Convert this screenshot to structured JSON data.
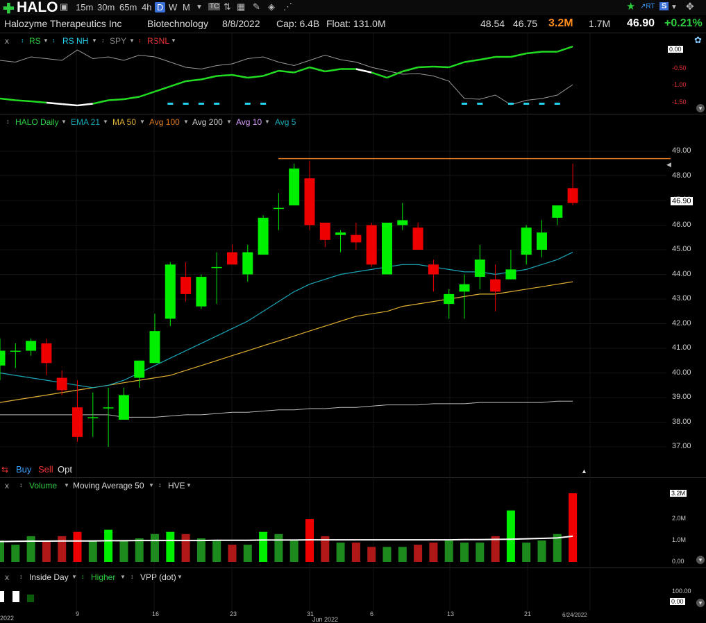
{
  "toolbar": {
    "symbol": "HALO",
    "timeframes": [
      "15m",
      "30m",
      "65m",
      "4h",
      "D",
      "W",
      "M"
    ],
    "active_timeframe": "D",
    "right_icons": [
      "star-icon",
      "rt-icon",
      "s-icon",
      "settings-icon"
    ]
  },
  "info": {
    "company": "Halozyme Therapeutics Inc",
    "industry": "Biotechnology",
    "date": "8/8/2022",
    "cap": "Cap: 6.4B",
    "float": "Float: 131.0M",
    "high": "48.54",
    "low": "46.75",
    "volume": "3.2M",
    "avg_volume": "1.7M",
    "price": "46.90",
    "change": "+0.21%"
  },
  "rs_pane": {
    "close_label": "x",
    "items": [
      "RS",
      "RS NH",
      "SPY",
      "RSNL"
    ],
    "axis": [
      "0.00",
      "-0.50",
      "-1.00",
      "-1.50"
    ]
  },
  "price_pane": {
    "items": [
      "HALO Daily",
      "EMA 21",
      "MA 50",
      "Avg 100",
      "Avg 200",
      "Avg 10",
      "Avg 5"
    ],
    "axis": [
      "49.00",
      "48.00",
      "47.00",
      "46.00",
      "45.00",
      "44.00",
      "43.00",
      "42.00",
      "41.00",
      "40.00",
      "39.00",
      "38.00",
      "37.00"
    ],
    "price_tag": "46.90",
    "actions": [
      "Buy",
      "Sell",
      "Opt"
    ]
  },
  "volume_pane": {
    "close_label": "x",
    "items": [
      "Volume",
      "Moving Average 50",
      "HVE"
    ],
    "axis": [
      "3.2M",
      "2.0M",
      "1.0M",
      "0.00"
    ]
  },
  "inside_pane": {
    "close_label": "x",
    "items": [
      "Inside Day",
      "Higher",
      "VPP (dot)"
    ],
    "axis": [
      "100.00",
      "0.00"
    ]
  },
  "date_axis": {
    "labels": [
      "2022",
      "9",
      "16",
      "23",
      "31",
      "Jun 2022",
      "6",
      "13",
      "21",
      "6/24/2022"
    ]
  },
  "colors": {
    "up": "#00ee00",
    "down": "#ee0000",
    "ema21": "#1aa6b7",
    "ma50": "#e0b030",
    "avg100": "#e07a1f",
    "avg200": "#bbbbbb",
    "rs_line": "#22dd22",
    "rs_spy": "#999999",
    "rs_nh_marks": "#22d3ee"
  },
  "chart_data": {
    "type": "candlestick",
    "symbol": "HALO",
    "ylim": [
      36.6,
      49.6
    ],
    "candles": [
      {
        "o": 40.3,
        "h": 41.4,
        "l": 39.7,
        "c": 40.9
      },
      {
        "o": 40.9,
        "h": 41.2,
        "l": 40.2,
        "c": 40.9
      },
      {
        "o": 40.9,
        "h": 41.4,
        "l": 40.7,
        "c": 41.3
      },
      {
        "o": 41.2,
        "h": 41.4,
        "l": 39.9,
        "c": 40.4
      },
      {
        "o": 39.8,
        "h": 40.1,
        "l": 39.1,
        "c": 39.3
      },
      {
        "o": 38.6,
        "h": 39.7,
        "l": 37.2,
        "c": 37.4
      },
      {
        "o": 38.2,
        "h": 39.2,
        "l": 37.4,
        "c": 38.2
      },
      {
        "o": 38.6,
        "h": 39.4,
        "l": 37.0,
        "c": 38.6
      },
      {
        "o": 38.1,
        "h": 39.4,
        "l": 38.1,
        "c": 39.1
      },
      {
        "o": 39.8,
        "h": 40.5,
        "l": 39.4,
        "c": 40.5
      },
      {
        "o": 40.4,
        "h": 42.4,
        "l": 40.4,
        "c": 41.7
      },
      {
        "o": 42.2,
        "h": 44.5,
        "l": 41.9,
        "c": 44.4
      },
      {
        "o": 43.9,
        "h": 44.5,
        "l": 42.9,
        "c": 43.2
      },
      {
        "o": 42.7,
        "h": 44.0,
        "l": 42.6,
        "c": 43.9
      },
      {
        "o": 44.3,
        "h": 44.9,
        "l": 42.8,
        "c": 44.3
      },
      {
        "o": 44.9,
        "h": 45.2,
        "l": 44.4,
        "c": 44.4
      },
      {
        "o": 44.0,
        "h": 45.2,
        "l": 43.7,
        "c": 44.9
      },
      {
        "o": 44.8,
        "h": 46.4,
        "l": 44.8,
        "c": 46.3
      },
      {
        "o": 46.7,
        "h": 47.3,
        "l": 45.8,
        "c": 46.7
      },
      {
        "o": 46.8,
        "h": 48.5,
        "l": 46.8,
        "c": 48.3
      },
      {
        "o": 47.9,
        "h": 48.6,
        "l": 45.8,
        "c": 46.0
      },
      {
        "o": 46.1,
        "h": 46.1,
        "l": 45.1,
        "c": 45.4
      },
      {
        "o": 45.6,
        "h": 45.8,
        "l": 44.9,
        "c": 45.7
      },
      {
        "o": 45.6,
        "h": 46.1,
        "l": 45.0,
        "c": 45.3
      },
      {
        "o": 46.0,
        "h": 46.1,
        "l": 44.3,
        "c": 44.4
      },
      {
        "o": 44.0,
        "h": 46.1,
        "l": 44.0,
        "c": 46.1
      },
      {
        "o": 46.0,
        "h": 46.9,
        "l": 45.8,
        "c": 46.2
      },
      {
        "o": 45.9,
        "h": 46.1,
        "l": 45.0,
        "c": 45.0
      },
      {
        "o": 44.4,
        "h": 44.6,
        "l": 43.3,
        "c": 44.0
      },
      {
        "o": 42.8,
        "h": 43.4,
        "l": 42.2,
        "c": 43.2
      },
      {
        "o": 43.3,
        "h": 44.0,
        "l": 42.2,
        "c": 43.6
      },
      {
        "o": 43.9,
        "h": 45.2,
        "l": 43.4,
        "c": 44.6
      },
      {
        "o": 43.8,
        "h": 44.4,
        "l": 42.5,
        "c": 43.3
      },
      {
        "o": 43.8,
        "h": 45.0,
        "l": 43.8,
        "c": 44.2
      },
      {
        "o": 44.8,
        "h": 46.0,
        "l": 44.4,
        "c": 45.9
      },
      {
        "o": 45.0,
        "h": 46.2,
        "l": 44.7,
        "c": 45.7
      },
      {
        "o": 46.3,
        "h": 46.8,
        "l": 46.0,
        "c": 46.8
      },
      {
        "o": 47.5,
        "h": 48.5,
        "l": 46.8,
        "c": 46.9
      }
    ],
    "ema21": [
      40.0,
      39.9,
      39.8,
      39.7,
      39.6,
      39.5,
      39.4,
      39.5,
      39.7,
      40.0,
      40.3,
      40.6,
      40.9,
      41.2,
      41.5,
      41.8,
      42.1,
      42.5,
      42.9,
      43.3,
      43.6,
      43.8,
      44.0,
      44.1,
      44.2,
      44.3,
      44.4,
      44.4,
      44.3,
      44.2,
      44.1,
      44.1,
      44.0,
      44.1,
      44.2,
      44.4,
      44.6,
      44.9
    ],
    "ma50": [
      38.8,
      38.9,
      39.0,
      39.1,
      39.2,
      39.3,
      39.4,
      39.5,
      39.6,
      39.7,
      39.8,
      39.9,
      40.1,
      40.3,
      40.5,
      40.7,
      40.9,
      41.1,
      41.3,
      41.5,
      41.7,
      41.9,
      42.1,
      42.3,
      42.4,
      42.5,
      42.7,
      42.8,
      42.9,
      43.0,
      43.1,
      43.2,
      43.2,
      43.3,
      43.4,
      43.5,
      43.6,
      43.7
    ],
    "avg200": [
      38.3,
      38.3,
      38.3,
      38.3,
      38.3,
      38.3,
      38.3,
      38.3,
      38.2,
      38.2,
      38.2,
      38.25,
      38.3,
      38.3,
      38.35,
      38.4,
      38.4,
      38.45,
      38.5,
      38.5,
      38.55,
      38.55,
      38.6,
      38.6,
      38.65,
      38.7,
      38.7,
      38.7,
      38.75,
      38.75,
      38.75,
      38.8,
      38.8,
      38.8,
      38.8,
      38.8,
      38.85,
      38.85
    ],
    "hline": 48.7,
    "volume_m": [
      1.0,
      0.8,
      1.2,
      1.0,
      1.2,
      1.4,
      1.0,
      1.5,
      1.0,
      1.1,
      1.3,
      1.4,
      1.3,
      1.1,
      1.0,
      0.8,
      0.8,
      1.4,
      1.3,
      1.0,
      2.0,
      1.2,
      0.9,
      0.9,
      0.7,
      0.7,
      0.7,
      0.8,
      0.9,
      1.0,
      0.9,
      0.9,
      1.2,
      2.4,
      0.9,
      1.0,
      1.3,
      3.2
    ],
    "volume_ma": [
      0.95,
      0.96,
      0.97,
      0.97,
      0.98,
      0.98,
      0.98,
      0.99,
      0.99,
      1.0,
      1.0,
      1.0,
      1.0,
      1.0,
      1.01,
      1.01,
      1.01,
      1.02,
      1.02,
      1.02,
      1.03,
      1.03,
      1.03,
      1.03,
      1.03,
      1.03,
      1.03,
      1.03,
      1.03,
      1.03,
      1.04,
      1.04,
      1.05,
      1.06,
      1.08,
      1.1,
      1.12,
      1.2
    ],
    "rs_line": [
      -1.4,
      -1.45,
      -1.48,
      -1.52,
      -1.56,
      -1.6,
      -1.55,
      -1.45,
      -1.42,
      -1.35,
      -1.2,
      -1.05,
      -0.9,
      -0.85,
      -0.75,
      -0.72,
      -0.8,
      -0.75,
      -0.6,
      -0.65,
      -0.5,
      -0.62,
      -0.55,
      -0.55,
      -0.65,
      -0.8,
      -0.62,
      -0.5,
      -0.48,
      -0.5,
      -0.35,
      -0.28,
      -0.2,
      -0.2,
      -0.1,
      -0.05,
      -0.05,
      0.1
    ]
  }
}
